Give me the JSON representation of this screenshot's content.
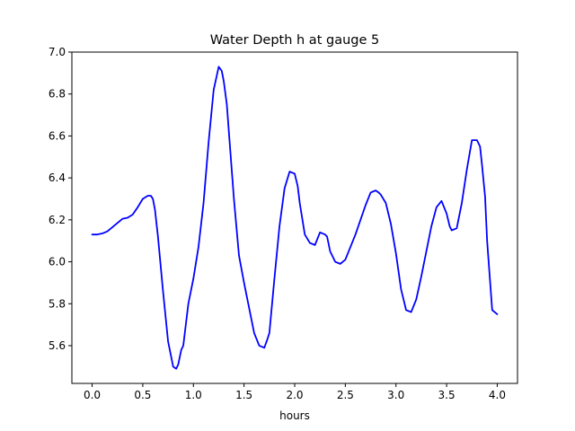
{
  "chart_data": {
    "type": "line",
    "title": "Water Depth h at gauge 5",
    "xlabel": "hours",
    "ylabel": "",
    "xlim": [
      -0.2,
      4.2
    ],
    "ylim": [
      5.42,
      7.0
    ],
    "xticks": [
      0.0,
      0.5,
      1.0,
      1.5,
      2.0,
      2.5,
      3.0,
      3.5,
      4.0
    ],
    "xtick_labels": [
      "0.0",
      "0.5",
      "1.0",
      "1.5",
      "2.0",
      "2.5",
      "3.0",
      "3.5",
      "4.0"
    ],
    "yticks": [
      5.6,
      5.8,
      6.0,
      6.2,
      6.4,
      6.6,
      6.8,
      7.0
    ],
    "ytick_labels": [
      "5.6",
      "5.8",
      "6.0",
      "6.2",
      "6.4",
      "6.6",
      "6.8",
      "7.0"
    ],
    "grid": false,
    "series": [
      {
        "name": "",
        "color": "#0000ff",
        "x": [
          0.0,
          0.05,
          0.1,
          0.15,
          0.2,
          0.25,
          0.3,
          0.35,
          0.4,
          0.45,
          0.5,
          0.55,
          0.58,
          0.6,
          0.62,
          0.65,
          0.7,
          0.75,
          0.8,
          0.83,
          0.85,
          0.88,
          0.9,
          0.95,
          1.0,
          1.05,
          1.1,
          1.15,
          1.2,
          1.25,
          1.28,
          1.3,
          1.33,
          1.35,
          1.4,
          1.45,
          1.5,
          1.55,
          1.6,
          1.65,
          1.7,
          1.73,
          1.75,
          1.8,
          1.85,
          1.9,
          1.95,
          2.0,
          2.03,
          2.05,
          2.1,
          2.15,
          2.2,
          2.25,
          2.3,
          2.32,
          2.35,
          2.4,
          2.45,
          2.5,
          2.55,
          2.6,
          2.65,
          2.7,
          2.75,
          2.8,
          2.83,
          2.85,
          2.9,
          2.95,
          3.0,
          3.05,
          3.1,
          3.15,
          3.2,
          3.25,
          3.3,
          3.35,
          3.4,
          3.45,
          3.5,
          3.53,
          3.55,
          3.6,
          3.65,
          3.7,
          3.75,
          3.8,
          3.83,
          3.85,
          3.88,
          3.9,
          3.95,
          4.0
        ],
        "y": [
          6.13,
          6.13,
          6.135,
          6.145,
          6.165,
          6.185,
          6.205,
          6.21,
          6.225,
          6.26,
          6.3,
          6.315,
          6.315,
          6.3,
          6.25,
          6.12,
          5.86,
          5.62,
          5.5,
          5.49,
          5.51,
          5.58,
          5.6,
          5.8,
          5.92,
          6.07,
          6.28,
          6.57,
          6.82,
          6.93,
          6.91,
          6.86,
          6.75,
          6.62,
          6.3,
          6.03,
          5.9,
          5.78,
          5.66,
          5.6,
          5.59,
          5.63,
          5.66,
          5.92,
          6.17,
          6.35,
          6.43,
          6.42,
          6.36,
          6.28,
          6.13,
          6.09,
          6.08,
          6.14,
          6.13,
          6.12,
          6.05,
          6.0,
          5.99,
          6.01,
          6.07,
          6.13,
          6.2,
          6.27,
          6.33,
          6.34,
          6.33,
          6.32,
          6.28,
          6.18,
          6.04,
          5.87,
          5.77,
          5.76,
          5.82,
          5.93,
          6.05,
          6.17,
          6.26,
          6.29,
          6.23,
          6.17,
          6.15,
          6.16,
          6.28,
          6.44,
          6.58,
          6.58,
          6.55,
          6.46,
          6.31,
          6.1,
          5.77,
          5.75
        ]
      }
    ]
  }
}
